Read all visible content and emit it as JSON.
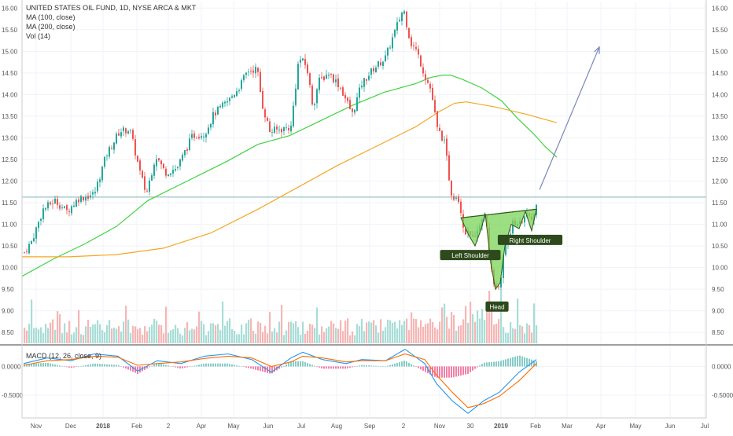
{
  "title": "UNITED STATES OIL FUND, 1D, NYSE ARCA & MKT",
  "legend": [
    "MA (100, close)",
    "MA (200, close)",
    "Vol (14)"
  ],
  "macd_label": "MACD (12, 26, close, 9)",
  "colors": {
    "up": "#26a69a",
    "down": "#ef5350",
    "ma100": "#3fd43f",
    "ma200": "#f5a623",
    "macd": "#2196f3",
    "signal": "#ff6d00",
    "pattern_fill": "#7bd45a",
    "pattern_stroke": "#2e5b12",
    "arrow": "#7a86b8",
    "hline": "#7fb3b3"
  },
  "chart_data": [
    {
      "type": "candlestick",
      "title": "UNITED STATES OIL FUND, 1D, NYSE ARCA & MKT",
      "x_ticks": [
        "Nov",
        "Dec",
        "2018",
        "Feb",
        "2",
        "Apr",
        "May",
        "Jun",
        "Jul",
        "Aug",
        "Sep",
        "2",
        "Nov",
        "30",
        "2019",
        "Feb",
        "Mar",
        "Apr",
        "May",
        "Jun",
        "Jul"
      ],
      "y_ticks": [
        "16.00",
        "15.50",
        "15.00",
        "14.50",
        "14.00",
        "13.50",
        "13.00",
        "12.50",
        "12.00",
        "11.50",
        "11.00",
        "10.50",
        "10.00",
        "9.50",
        "9.00",
        "8.50"
      ],
      "ylim": [
        8.25,
        16.15
      ],
      "series": [
        {
          "name": "MA (100, close)",
          "points": [
            [
              0,
              9.8
            ],
            [
              40,
              10.2
            ],
            [
              80,
              10.55
            ],
            [
              120,
              10.95
            ],
            [
              160,
              11.55
            ],
            [
              210,
              12.0
            ],
            [
              260,
              12.45
            ],
            [
              300,
              12.85
            ],
            [
              340,
              13.05
            ],
            [
              380,
              13.4
            ],
            [
              420,
              13.75
            ],
            [
              460,
              14.05
            ],
            [
              500,
              14.25
            ],
            [
              520,
              14.4
            ],
            [
              535,
              14.45
            ],
            [
              545,
              14.45
            ],
            [
              560,
              14.35
            ],
            [
              585,
              14.15
            ],
            [
              610,
              13.85
            ],
            [
              630,
              13.45
            ],
            [
              650,
              13.1
            ],
            [
              665,
              12.8
            ],
            [
              680,
              12.55
            ]
          ]
        },
        {
          "name": "MA (200, close)",
          "points": [
            [
              0,
              10.25
            ],
            [
              60,
              10.25
            ],
            [
              120,
              10.3
            ],
            [
              180,
              10.45
            ],
            [
              240,
              10.8
            ],
            [
              300,
              11.35
            ],
            [
              350,
              11.85
            ],
            [
              400,
              12.35
            ],
            [
              450,
              12.8
            ],
            [
              500,
              13.25
            ],
            [
              530,
              13.6
            ],
            [
              550,
              13.8
            ],
            [
              565,
              13.83
            ],
            [
              600,
              13.72
            ],
            [
              640,
              13.55
            ],
            [
              680,
              13.35
            ]
          ]
        }
      ],
      "annotations": [
        {
          "text": "Left Shoulder",
          "value": 10.5
        },
        {
          "text": "Head",
          "value": 9.2
        },
        {
          "text": "Right Shoulder",
          "value": 10.85
        }
      ],
      "pattern": {
        "vertices": [
          [
            586,
            11.15
          ],
          [
            596,
            10.75
          ],
          [
            604,
            10.5
          ],
          [
            612,
            10.9
          ],
          [
            617,
            11.25
          ],
          [
            624,
            10.1
          ],
          [
            630,
            9.5
          ],
          [
            636,
            9.65
          ],
          [
            642,
            10.5
          ],
          [
            650,
            11.0
          ],
          [
            660,
            10.9
          ],
          [
            668,
            11.3
          ],
          [
            676,
            10.85
          ],
          [
            682,
            11.35
          ]
        ],
        "neckline": [
          [
            586,
            11.15
          ],
          [
            682,
            11.35
          ]
        ]
      },
      "reference_level": 11.63,
      "target_arrow": [
        [
          686,
          11.8
        ],
        [
          762,
          15.1
        ]
      ]
    },
    {
      "type": "line",
      "title": "MACD (12, 26, close, 9)",
      "y_ticks": [
        "0.0000",
        "-0.5000"
      ],
      "ylim": [
        -0.9,
        0.35
      ],
      "series": [
        {
          "name": "MACD",
          "points": [
            [
              30,
              0.05
            ],
            [
              60,
              0.15
            ],
            [
              90,
              0.1
            ],
            [
              120,
              0.22
            ],
            [
              150,
              0.18
            ],
            [
              175,
              -0.08
            ],
            [
              200,
              0.1
            ],
            [
              230,
              0.05
            ],
            [
              260,
              0.18
            ],
            [
              290,
              0.22
            ],
            [
              320,
              0.12
            ],
            [
              345,
              -0.1
            ],
            [
              370,
              0.15
            ],
            [
              385,
              0.25
            ],
            [
              410,
              0.12
            ],
            [
              440,
              0.05
            ],
            [
              460,
              0.12
            ],
            [
              490,
              0.1
            ],
            [
              515,
              0.3
            ],
            [
              540,
              0.05
            ],
            [
              555,
              -0.3
            ],
            [
              575,
              -0.6
            ],
            [
              595,
              -0.82
            ],
            [
              615,
              -0.6
            ],
            [
              635,
              -0.45
            ],
            [
              660,
              -0.1
            ],
            [
              682,
              0.12
            ]
          ]
        },
        {
          "name": "Signal",
          "points": [
            [
              30,
              0.02
            ],
            [
              60,
              0.1
            ],
            [
              90,
              0.12
            ],
            [
              120,
              0.18
            ],
            [
              150,
              0.16
            ],
            [
              175,
              0.02
            ],
            [
              200,
              0.05
            ],
            [
              230,
              0.08
            ],
            [
              260,
              0.14
            ],
            [
              290,
              0.18
            ],
            [
              320,
              0.15
            ],
            [
              345,
              0.0
            ],
            [
              370,
              0.08
            ],
            [
              385,
              0.18
            ],
            [
              410,
              0.15
            ],
            [
              440,
              0.08
            ],
            [
              460,
              0.1
            ],
            [
              490,
              0.1
            ],
            [
              515,
              0.22
            ],
            [
              540,
              0.12
            ],
            [
              555,
              -0.15
            ],
            [
              575,
              -0.45
            ],
            [
              595,
              -0.72
            ],
            [
              615,
              -0.65
            ],
            [
              635,
              -0.52
            ],
            [
              660,
              -0.25
            ],
            [
              682,
              0.05
            ]
          ]
        }
      ]
    }
  ]
}
